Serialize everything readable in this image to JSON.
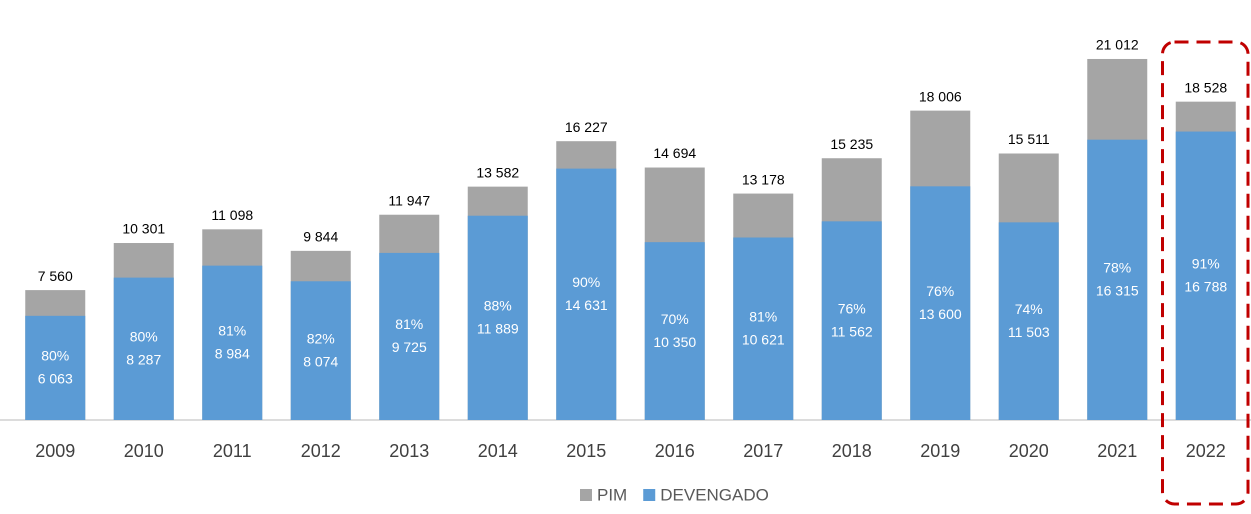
{
  "chart_data": {
    "type": "overlap_bar",
    "categories": [
      "2009",
      "2010",
      "2011",
      "2012",
      "2013",
      "2014",
      "2015",
      "2016",
      "2017",
      "2018",
      "2019",
      "2020",
      "2021",
      "2022"
    ],
    "series": [
      {
        "name": "PIM",
        "color": "#a5a5a5",
        "values": [
          7560,
          10301,
          11098,
          9844,
          11947,
          13582,
          16227,
          14694,
          13178,
          15235,
          18006,
          15511,
          21012,
          18528
        ],
        "value_labels": [
          "7 560",
          "10 301",
          "11 098",
          "9 844",
          "11 947",
          "13 582",
          "16 227",
          "14 694",
          "13 178",
          "15 235",
          "18 006",
          "15 511",
          "21 012",
          "18 528"
        ]
      },
      {
        "name": "DEVENGADO",
        "color": "#5b9bd5",
        "values": [
          6063,
          8287,
          8984,
          8074,
          9725,
          11889,
          14631,
          10350,
          10621,
          11562,
          13600,
          11503,
          16315,
          16788
        ],
        "value_labels": [
          "6 063",
          "8 287",
          "8 984",
          "8 074",
          "9 725",
          "11 889",
          "14 631",
          "10 350",
          "10 621",
          "11 562",
          "13 600",
          "11 503",
          "16 315",
          "16 788"
        ],
        "share_labels": [
          "80%",
          "80%",
          "81%",
          "82%",
          "81%",
          "88%",
          "90%",
          "70%",
          "81%",
          "76%",
          "76%",
          "74%",
          "78%",
          "91%"
        ]
      }
    ],
    "ylim": [
      0,
      22000
    ],
    "grid": false,
    "legend": "bottom"
  }
}
